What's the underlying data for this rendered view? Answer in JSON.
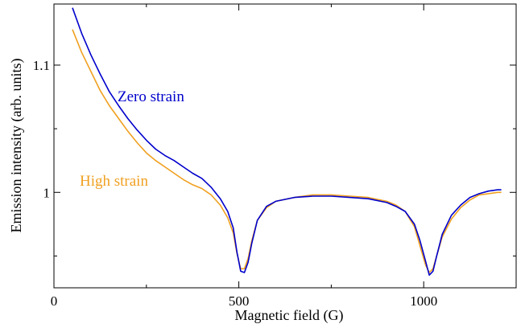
{
  "chart_data": {
    "type": "line",
    "xlabel": "Magnetic field (G)",
    "ylabel": "Emission intensity (arb. units)",
    "xlim": [
      0,
      1250
    ],
    "ylim": [
      0.925,
      1.148
    ],
    "x_ticks": [
      0,
      500,
      1000
    ],
    "x_tick_labels": [
      "0",
      "500",
      "1000"
    ],
    "y_ticks": [
      1.0,
      1.1
    ],
    "y_tick_labels": [
      "1",
      "1.1"
    ],
    "grid": false,
    "legend": "inline labels next to curves",
    "series": [
      {
        "name": "Zero strain",
        "color": "#0000cc",
        "x": [
          50,
          75,
          100,
          125,
          150,
          175,
          200,
          225,
          250,
          275,
          300,
          325,
          350,
          375,
          400,
          425,
          450,
          470,
          485,
          495,
          505,
          515,
          525,
          535,
          550,
          575,
          600,
          650,
          700,
          750,
          800,
          850,
          900,
          925,
          950,
          975,
          990,
          1005,
          1015,
          1025,
          1035,
          1050,
          1075,
          1100,
          1125,
          1150,
          1175,
          1200,
          1210
        ],
        "y": [
          1.145,
          1.125,
          1.108,
          1.093,
          1.079,
          1.068,
          1.058,
          1.049,
          1.041,
          1.034,
          1.029,
          1.025,
          1.02,
          1.015,
          1.011,
          1.004,
          0.995,
          0.985,
          0.972,
          0.953,
          0.938,
          0.937,
          0.945,
          0.96,
          0.978,
          0.989,
          0.993,
          0.996,
          0.997,
          0.997,
          0.996,
          0.995,
          0.992,
          0.989,
          0.985,
          0.975,
          0.962,
          0.946,
          0.935,
          0.938,
          0.95,
          0.967,
          0.982,
          0.99,
          0.996,
          0.999,
          1.001,
          1.002,
          1.002
        ]
      },
      {
        "name": "High strain",
        "color": "#f0a020",
        "x": [
          50,
          75,
          100,
          125,
          150,
          175,
          200,
          225,
          250,
          275,
          300,
          325,
          350,
          375,
          400,
          425,
          450,
          470,
          485,
          495,
          505,
          515,
          525,
          535,
          550,
          575,
          600,
          650,
          700,
          750,
          800,
          850,
          900,
          925,
          950,
          975,
          990,
          1005,
          1015,
          1025,
          1035,
          1050,
          1075,
          1100,
          1125,
          1150,
          1175,
          1200,
          1210
        ],
        "y": [
          1.128,
          1.11,
          1.095,
          1.08,
          1.068,
          1.058,
          1.048,
          1.039,
          1.031,
          1.025,
          1.02,
          1.015,
          1.01,
          1.006,
          1.003,
          0.998,
          0.99,
          0.98,
          0.968,
          0.952,
          0.94,
          0.94,
          0.948,
          0.962,
          0.978,
          0.988,
          0.993,
          0.996,
          0.998,
          0.998,
          0.997,
          0.996,
          0.993,
          0.99,
          0.985,
          0.973,
          0.958,
          0.943,
          0.937,
          0.94,
          0.95,
          0.965,
          0.979,
          0.988,
          0.994,
          0.998,
          0.999,
          1.0,
          1.0
        ]
      }
    ]
  }
}
